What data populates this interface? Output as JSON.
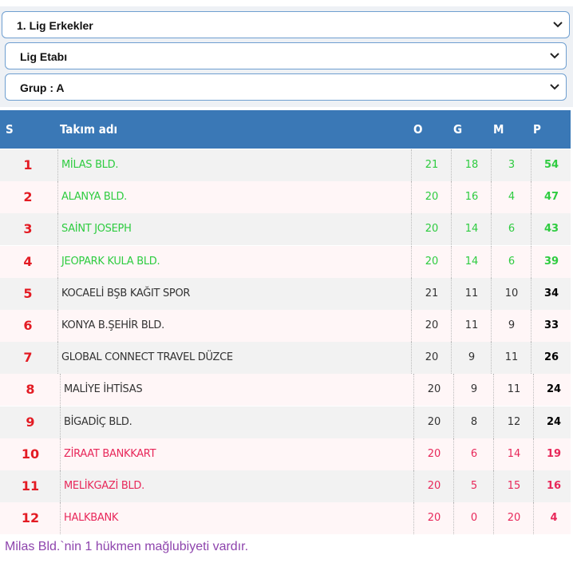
{
  "dropdowns": [
    "1. Lig Erkekler",
    "Lig Etabı",
    "Grup : A"
  ],
  "table": {
    "columns": [
      "S",
      "Takım adı",
      "O",
      "G",
      "M",
      "P"
    ],
    "rows": [
      [
        1,
        "MİLAS BLD.",
        21,
        18,
        3,
        54
      ],
      [
        2,
        "ALANYA BLD.",
        20,
        16,
        4,
        47
      ],
      [
        3,
        "SAİNT JOSEPH",
        20,
        14,
        6,
        43
      ],
      [
        4,
        "JEOPARK KULA BLD.",
        20,
        14,
        6,
        39
      ],
      [
        5,
        "KOCAELİ BŞB KAĞIT SPOR",
        21,
        11,
        10,
        34
      ],
      [
        6,
        "KONYA B.ŞEHİR BLD.",
        20,
        11,
        9,
        33
      ],
      [
        7,
        "GLOBAL CONNECT TRAVEL DÜZCE",
        20,
        9,
        11,
        26
      ],
      [
        8,
        "MALİYE İHTİSAS",
        20,
        9,
        11,
        24
      ],
      [
        9,
        "BİGADİÇ BLD.",
        20,
        8,
        12,
        24
      ],
      [
        10,
        "ZİRAAT BANKKART",
        20,
        6,
        14,
        19
      ],
      [
        11,
        "MELİKGAZİ BLD.",
        20,
        5,
        15,
        16
      ],
      [
        12,
        "HALKBANK",
        20,
        0,
        20,
        4
      ]
    ],
    "row_colors": [
      "#2ecc40",
      "#2ecc40",
      "#2ecc40",
      "#2ecc40",
      "#333333",
      "#333333",
      "#333333",
      "#333333",
      "#333333",
      "#e8285a",
      "#e8285a",
      "#e8285a"
    ]
  },
  "footnote": "Milas Bld.`nin 1 hükmen mağlubiyeti vardır."
}
